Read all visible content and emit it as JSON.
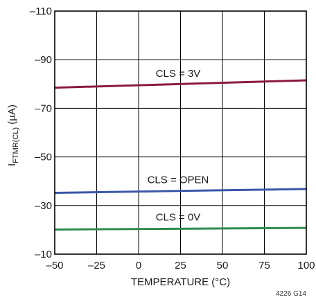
{
  "chart_data": {
    "type": "line",
    "xlabel": "TEMPERATURE (°C)",
    "ylabel": {
      "main": "I",
      "subscript": "FTMR(CL)",
      "unit": " (µA)"
    },
    "figure_id": "4226 G14",
    "xlim": [
      -50,
      100
    ],
    "ylim": [
      -10,
      -110
    ],
    "y_inverted": true,
    "grid": true,
    "x_ticks": [
      -50,
      -25,
      0,
      25,
      50,
      75,
      100
    ],
    "x_tick_labels": [
      "–50",
      "–25",
      "0",
      "25",
      "50",
      "75",
      "100"
    ],
    "y_ticks": [
      -10,
      -30,
      -50,
      -70,
      -90,
      -110
    ],
    "y_tick_labels": [
      "–10",
      "–30",
      "–50",
      "–70",
      "–90",
      "–110"
    ],
    "series": [
      {
        "name": "CLS = 3V",
        "color": "#8b1a3a",
        "x": [
          -50,
          100
        ],
        "y": [
          -78.5,
          -81.5
        ]
      },
      {
        "name": "CLS = OPEN",
        "color": "#3a56a8",
        "x": [
          -50,
          100
        ],
        "y": [
          -35.2,
          -36.8
        ]
      },
      {
        "name": "CLS = 0V",
        "color": "#2e8b4e",
        "x": [
          -50,
          100
        ],
        "y": [
          -20.1,
          -20.8
        ]
      }
    ]
  }
}
